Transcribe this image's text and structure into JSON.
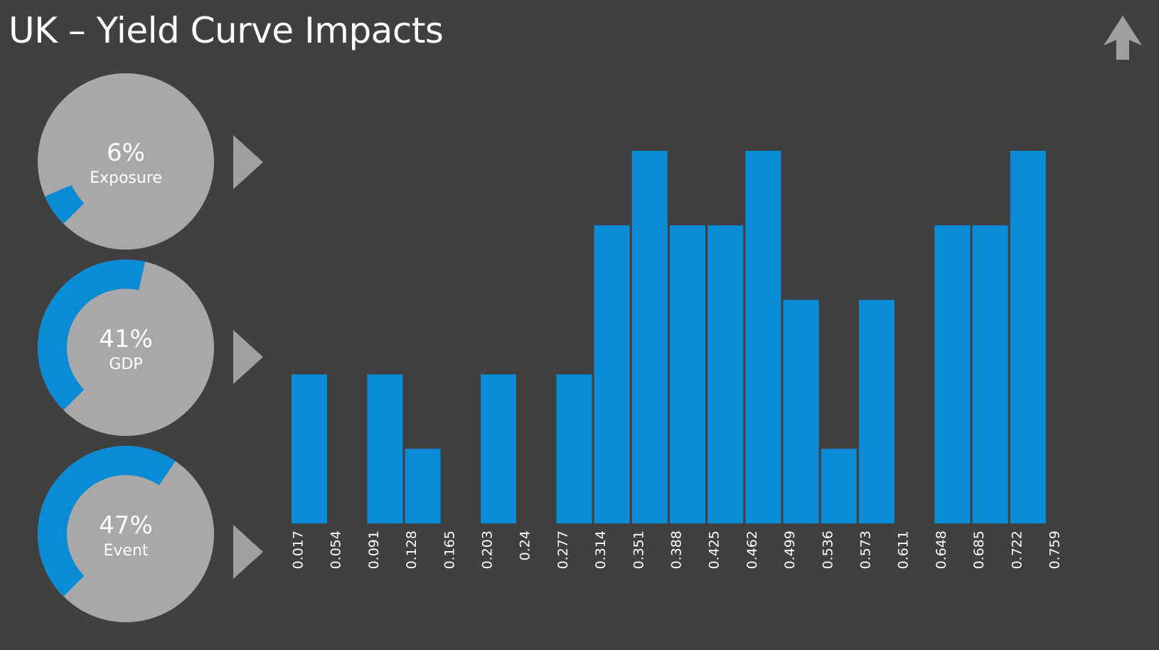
{
  "header": {
    "title": "UK – Yield Curve Impacts",
    "nav_icon": "arrow-up-icon"
  },
  "gauges": [
    {
      "value": "6%",
      "label": "Exposure",
      "fraction": 0.06
    },
    {
      "value": "41%",
      "label": "GDP",
      "fraction": 0.41
    },
    {
      "value": "47%",
      "label": "Event",
      "fraction": 0.47
    }
  ],
  "colors": {
    "background": "#404040",
    "accent": "#0a8bd6",
    "gauge_ring": "#a8a8a8",
    "pointer": "#a0a0a0"
  },
  "chart_data": {
    "type": "bar",
    "title": "",
    "xlabel": "",
    "ylabel": "",
    "categories": [
      "0.017",
      "0.054",
      "0.091",
      "0.128",
      "0.165",
      "0.203",
      "0.24",
      "0.277",
      "0.314",
      "0.351",
      "0.388",
      "0.425",
      "0.462",
      "0.499",
      "0.536",
      "0.573",
      "0.611",
      "0.648",
      "0.685",
      "0.722",
      "0.759"
    ],
    "values": [
      2,
      0,
      2,
      1,
      0,
      2,
      0,
      2,
      4,
      5,
      4,
      4,
      5,
      3,
      1,
      3,
      0,
      4,
      4,
      5,
      0
    ],
    "ylim": [
      0,
      5
    ],
    "grid": false,
    "legend": "none"
  }
}
